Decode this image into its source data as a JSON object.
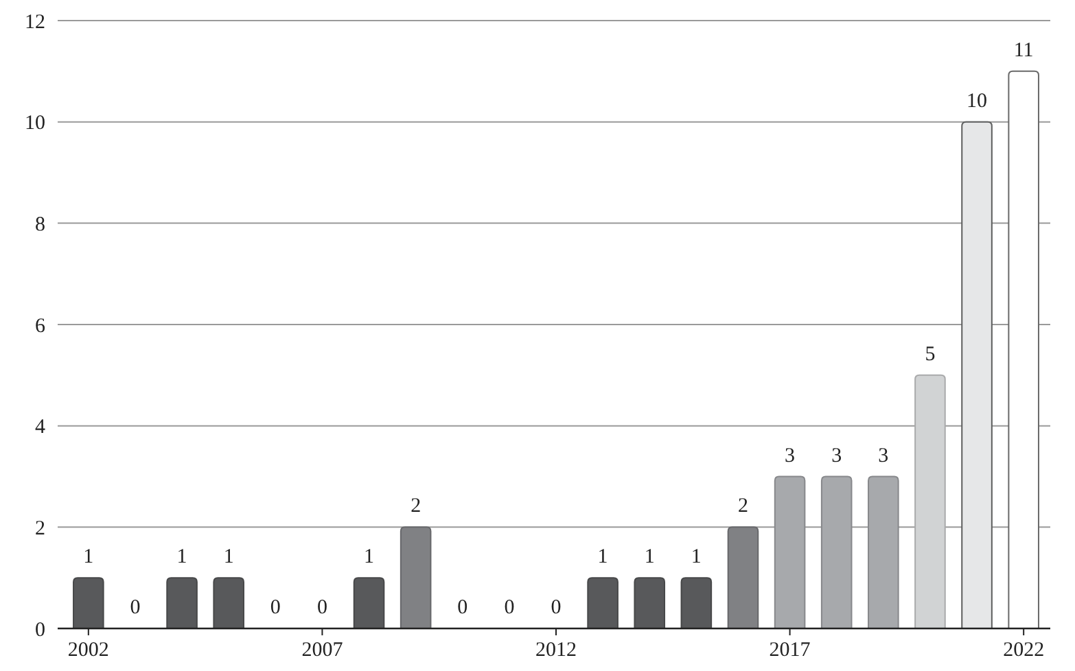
{
  "chart_data": {
    "type": "bar",
    "categories": [
      "2002",
      null,
      null,
      null,
      null,
      "2007",
      null,
      null,
      null,
      null,
      "2012",
      null,
      null,
      null,
      null,
      "2017",
      null,
      null,
      null,
      null,
      "2022"
    ],
    "values": [
      1,
      0,
      1,
      1,
      0,
      0,
      1,
      2,
      0,
      0,
      0,
      1,
      1,
      1,
      2,
      3,
      3,
      3,
      5,
      10,
      11
    ],
    "colors": [
      "#58595b",
      "#58595b",
      "#58595b",
      "#58595b",
      "#58595b",
      "#58595b",
      "#58595b",
      "#808184",
      "#58595b",
      "#58595b",
      "#58595b",
      "#58595b",
      "#58595b",
      "#58595b",
      "#808184",
      "#a7a9ac",
      "#a7a9ac",
      "#a7a9ac",
      "#d1d3d4",
      "#e6e7e8",
      "#ffffff"
    ],
    "ylim": [
      0,
      12
    ],
    "yticks": [
      0,
      2,
      4,
      6,
      8,
      10,
      12
    ],
    "grid": "y",
    "data_labels": true,
    "tick_labels": true
  }
}
